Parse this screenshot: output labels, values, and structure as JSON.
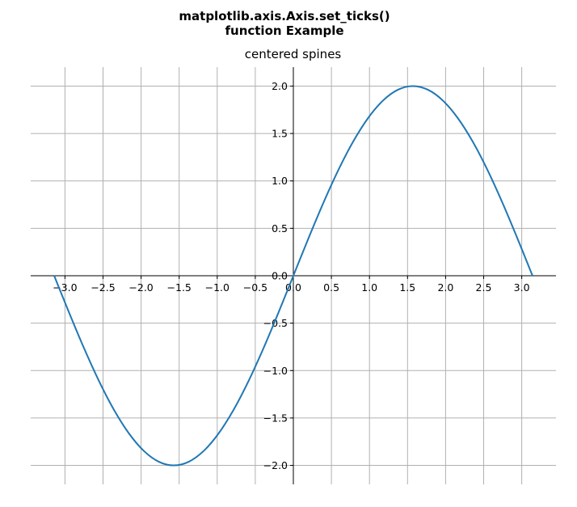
{
  "figure": {
    "suptitle_line1": "matplotlib.axis.Axis.set_ticks()",
    "suptitle_line2": "function Example"
  },
  "chart_data": {
    "type": "line",
    "title": "centered spines",
    "xlabel": "",
    "ylabel": "",
    "function": "2*sin(x)",
    "xlim": [
      -3.45,
      3.45
    ],
    "ylim": [
      -2.2,
      2.2
    ],
    "grid": true,
    "spines": "centered",
    "xticks": [
      -3.0,
      -2.5,
      -2.0,
      -1.5,
      -1.0,
      -0.5,
      0.0,
      0.5,
      1.0,
      1.5,
      2.0,
      2.5,
      3.0
    ],
    "yticks": [
      -2.0,
      -1.5,
      -1.0,
      -0.5,
      0.0,
      0.5,
      1.0,
      1.5,
      2.0
    ],
    "xtick_labels": [
      "−3.0",
      "−2.5",
      "−2.0",
      "−1.5",
      "−1.0",
      "−0.5",
      "0.0",
      "0.5",
      "1.0",
      "1.5",
      "2.0",
      "2.5",
      "3.0"
    ],
    "ytick_labels": [
      "−2.0",
      "−1.5",
      "−1.0",
      "−0.5",
      "0.0",
      "0.5",
      "1.0",
      "1.5",
      "2.0"
    ],
    "series": [
      {
        "color": "#1f77b4",
        "x": [
          -3.1416,
          -2.9452,
          -2.7489,
          -2.5525,
          -2.3562,
          -2.1598,
          -1.9635,
          -1.7671,
          -1.5708,
          -1.3744,
          -1.1781,
          -0.9817,
          -0.7854,
          -0.589,
          -0.3927,
          -0.1963,
          0.0,
          0.1963,
          0.3927,
          0.589,
          0.7854,
          0.9817,
          1.1781,
          1.3744,
          1.5708,
          1.7671,
          1.9635,
          2.1598,
          2.3562,
          2.5525,
          2.7489,
          2.9452,
          3.1416
        ],
        "y": [
          0.0,
          -0.3902,
          -0.7654,
          -1.1111,
          -1.4142,
          -1.6629,
          -1.8478,
          -1.9616,
          -2.0,
          -1.9616,
          -1.8478,
          -1.6629,
          -1.4142,
          -1.1111,
          -0.7654,
          -0.3902,
          0.0,
          0.3902,
          0.7654,
          1.1111,
          1.4142,
          1.6629,
          1.8478,
          1.9616,
          2.0,
          1.9616,
          1.8478,
          1.6629,
          1.4142,
          1.1111,
          0.7654,
          0.3902,
          0.0
        ]
      }
    ]
  }
}
